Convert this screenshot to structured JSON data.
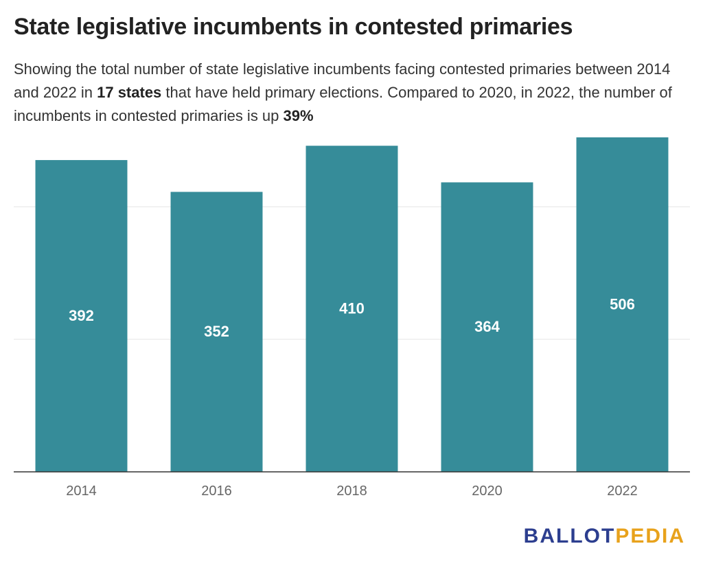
{
  "title": "State legislative incumbents in contested primaries",
  "subtitle": {
    "part1": "Showing the total number of state legislative incumbents facing contested primaries between 2014 and 2022 in ",
    "bold1": "17 states",
    "part2": " that have held primary elections. Compared to 2020, in 2022, the number of incumbents in contested primaries is up ",
    "bold2": "39%"
  },
  "logo": {
    "part1": "BALLOT",
    "part2": "PEDIA"
  },
  "chart_data": {
    "type": "bar",
    "categories": [
      "2014",
      "2016",
      "2018",
      "2020",
      "2022"
    ],
    "values": [
      392,
      352,
      410,
      364,
      506
    ],
    "ylim": [
      0,
      500
    ],
    "grid": true,
    "colors": {
      "bar": "#368c99",
      "gridline": "#e6e6e6",
      "baseline": "#333333",
      "label": "#ffffff",
      "tick": "#666666"
    }
  }
}
